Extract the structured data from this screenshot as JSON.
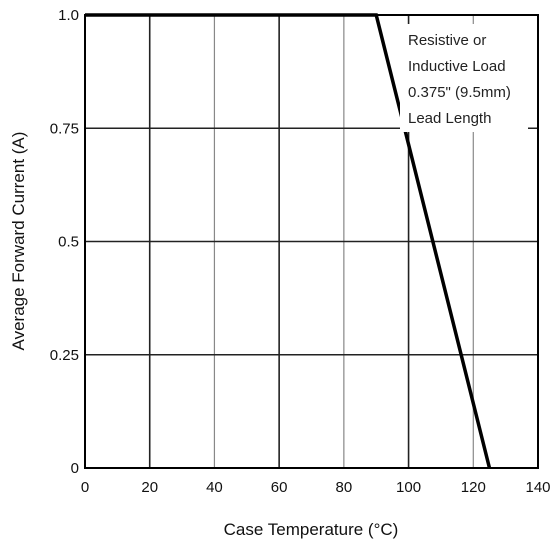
{
  "chart_data": {
    "type": "line",
    "title": "",
    "xlabel": "Case Temperature (°C)",
    "ylabel": "Average Forward Current (A)",
    "xlim": [
      0,
      140
    ],
    "ylim": [
      0,
      1.0
    ],
    "x_ticks": [
      0,
      20,
      40,
      60,
      80,
      100,
      120,
      140
    ],
    "x_tick_labels": [
      "0",
      "20",
      "40",
      "60",
      "80",
      "100",
      "120",
      "140"
    ],
    "y_ticks": [
      0,
      0.25,
      0.5,
      0.75,
      1.0
    ],
    "y_tick_labels": [
      "0",
      "0.25",
      "0.5",
      "0.75",
      "1.0"
    ],
    "grid": true,
    "series": [
      {
        "x": [
          0,
          90,
          125
        ],
        "y": [
          1.0,
          1.0,
          0
        ],
        "color": "#000000"
      }
    ],
    "annotation": [
      "Resistive or",
      "Inductive Load",
      "0.375\" (9.5mm)",
      "Lead Length"
    ]
  }
}
